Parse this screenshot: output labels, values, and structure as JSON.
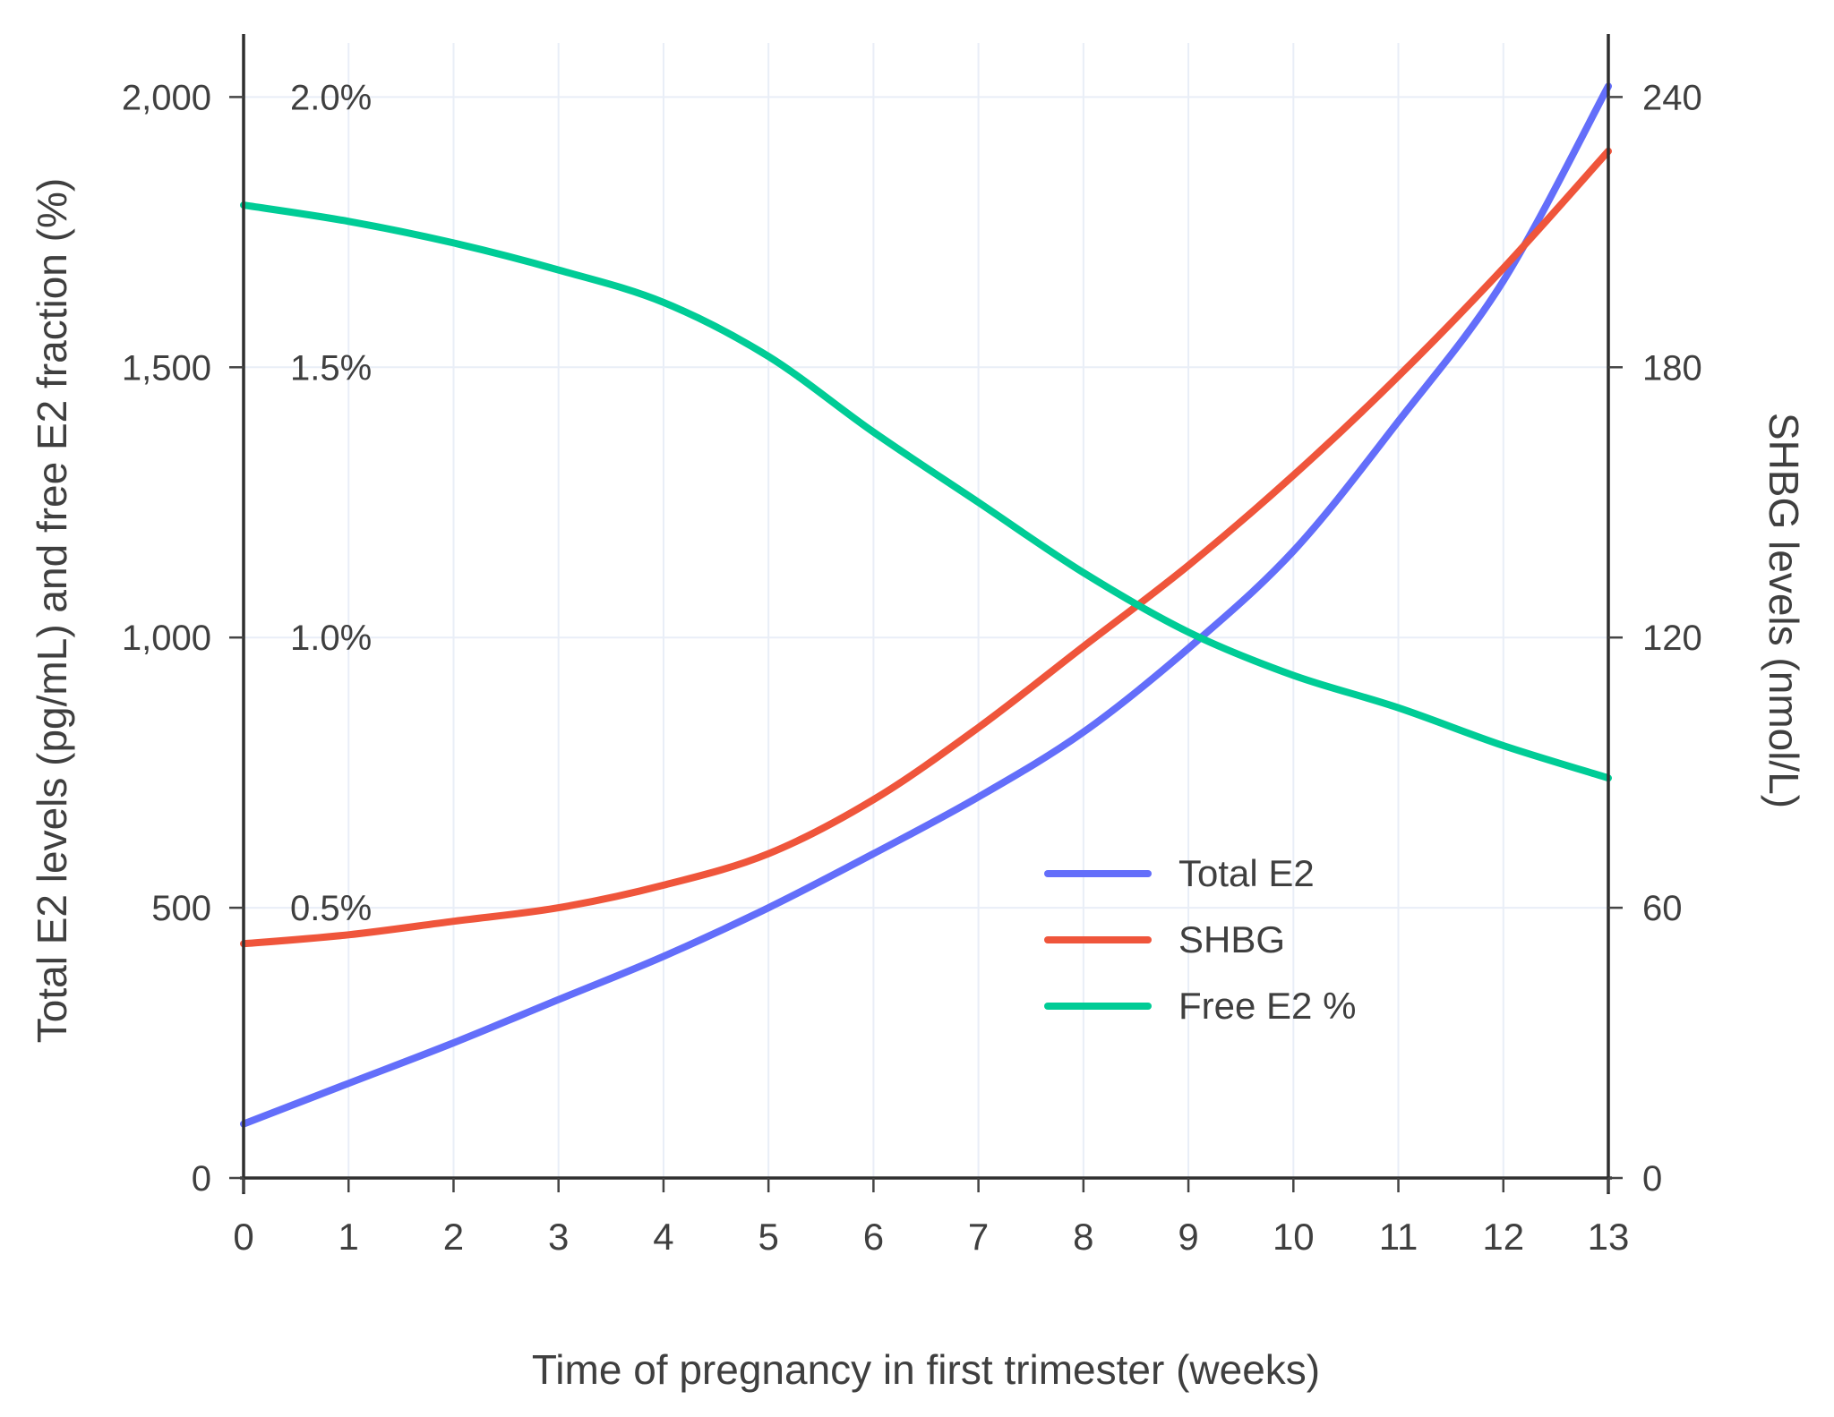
{
  "figure": {
    "background": "#ffffff",
    "text_color": "#3f3f3f",
    "grid_color": "#e9eef7",
    "axis_color": "#2f2f2f"
  },
  "chart_data": {
    "type": "line",
    "title": "",
    "xlabel": "Time of pregnancy in first trimester (weeks)",
    "ylabel_left": "Total E2 levels (pg/mL) and free E2 fraction (%)",
    "ylabel_right": "SHBG levels (nmol/L)",
    "x": [
      0,
      1,
      2,
      3,
      4,
      5,
      6,
      7,
      8,
      9,
      10,
      11,
      12,
      13
    ],
    "x_ticks": [
      "0",
      "1",
      "2",
      "3",
      "4",
      "5",
      "6",
      "7",
      "8",
      "9",
      "10",
      "11",
      "12",
      "13"
    ],
    "left_axis": {
      "range": [
        0,
        2100
      ],
      "ticks": [
        {
          "value": 0,
          "label": "0"
        },
        {
          "value": 500,
          "label": "500"
        },
        {
          "value": 1000,
          "label": "1,000"
        },
        {
          "value": 1500,
          "label": "1,500"
        },
        {
          "value": 2000,
          "label": "2,000"
        }
      ]
    },
    "right_axis": {
      "range": [
        0,
        252
      ],
      "ticks": [
        {
          "value": 0,
          "label": "0"
        },
        {
          "value": 60,
          "label": "60"
        },
        {
          "value": 120,
          "label": "120"
        },
        {
          "value": 180,
          "label": "180"
        },
        {
          "value": 240,
          "label": "240"
        }
      ]
    },
    "percent_labels": [
      {
        "value": 500,
        "label": "0.5%"
      },
      {
        "value": 1000,
        "label": "1.0%"
      },
      {
        "value": 1500,
        "label": "1.5%"
      },
      {
        "value": 2000,
        "label": "2.0%"
      }
    ],
    "grid": true,
    "legend_position": "inside-center-right",
    "series": [
      {
        "name": "Total E2",
        "unit": "pg/mL",
        "axis": "left",
        "color": "#636efa",
        "values": [
          100,
          175,
          250,
          330,
          410,
          500,
          600,
          705,
          825,
          980,
          1160,
          1400,
          1660,
          2020
        ]
      },
      {
        "name": "SHBG",
        "unit": "nmol/L",
        "axis": "right",
        "color": "#ef553b",
        "values": [
          52,
          54,
          57,
          60,
          65,
          72,
          84,
          100,
          118,
          136,
          156,
          178,
          202,
          228
        ]
      },
      {
        "name": "Free E2 %",
        "unit": "%",
        "axis": "left",
        "axis_multiplier": 1000,
        "color": "#00cc96",
        "values": [
          1.8,
          1.77,
          1.73,
          1.68,
          1.62,
          1.52,
          1.38,
          1.25,
          1.12,
          1.01,
          0.93,
          0.87,
          0.8,
          0.74
        ]
      }
    ]
  }
}
